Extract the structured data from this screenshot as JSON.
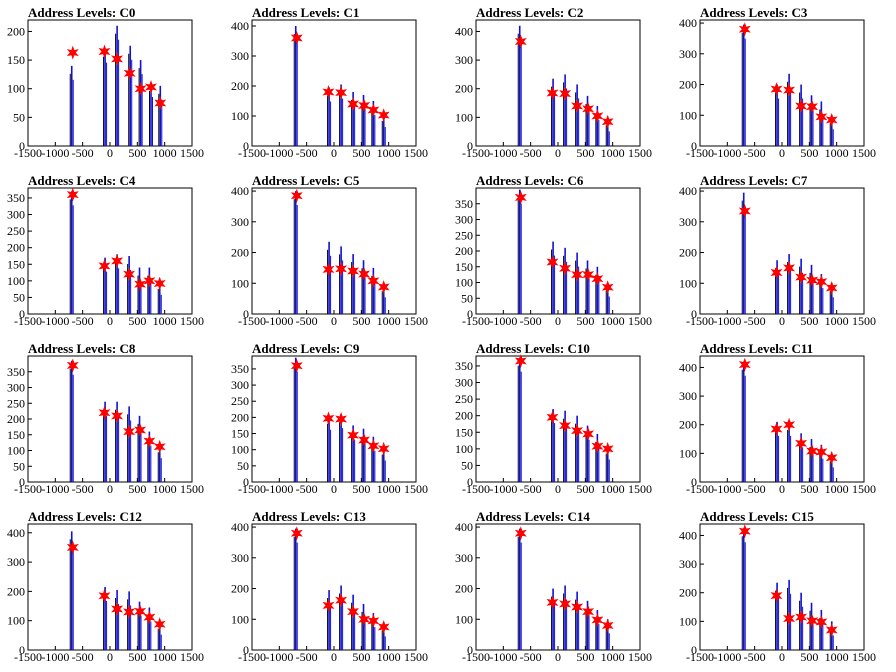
{
  "colors": {
    "peak": "#1010d8",
    "marker": "#ff0000",
    "axis": "#000000",
    "background": "#ffffff"
  },
  "x_ticks": [
    -1500,
    -1000,
    -500,
    0,
    500,
    1000,
    1500
  ],
  "chart_data": [
    {
      "type": "bar",
      "title": "Address Levels: C0",
      "xlim": [
        -1500,
        1500
      ],
      "ylim": [
        0,
        220
      ],
      "yticks": [
        0,
        50,
        100,
        150,
        200
      ],
      "peaks": [
        {
          "x": -680,
          "y": 163
        },
        {
          "x": -100,
          "y": 165
        },
        {
          "x": 130,
          "y": 152
        },
        {
          "x": 360,
          "y": 127
        },
        {
          "x": 560,
          "y": 100
        },
        {
          "x": 750,
          "y": 103
        },
        {
          "x": 920,
          "y": 75
        }
      ],
      "bar_tops": [
        {
          "x": -700,
          "y": 140
        },
        {
          "x": -90,
          "y": 170
        },
        {
          "x": 130,
          "y": 210
        },
        {
          "x": 370,
          "y": 175
        },
        {
          "x": 560,
          "y": 150
        },
        {
          "x": 750,
          "y": 110
        },
        {
          "x": 920,
          "y": 105
        }
      ]
    },
    {
      "type": "bar",
      "title": "Address Levels: C1",
      "xlim": [
        -1500,
        1500
      ],
      "ylim": [
        0,
        420
      ],
      "yticks": [
        0,
        100,
        200,
        300,
        400
      ],
      "peaks": [
        {
          "x": -680,
          "y": 360
        },
        {
          "x": -100,
          "y": 180
        },
        {
          "x": 130,
          "y": 178
        },
        {
          "x": 350,
          "y": 140
        },
        {
          "x": 550,
          "y": 135
        },
        {
          "x": 720,
          "y": 120
        },
        {
          "x": 910,
          "y": 103
        }
      ],
      "bar_tops": [
        {
          "x": -700,
          "y": 400
        },
        {
          "x": -90,
          "y": 195
        },
        {
          "x": 130,
          "y": 205
        },
        {
          "x": 350,
          "y": 180
        },
        {
          "x": 540,
          "y": 170
        },
        {
          "x": 720,
          "y": 150
        },
        {
          "x": 910,
          "y": 110
        }
      ]
    },
    {
      "type": "bar",
      "title": "Address Levels: C2",
      "xlim": [
        -1500,
        1500
      ],
      "ylim": [
        0,
        440
      ],
      "yticks": [
        0,
        100,
        200,
        300,
        400
      ],
      "peaks": [
        {
          "x": -680,
          "y": 365
        },
        {
          "x": -100,
          "y": 185
        },
        {
          "x": 130,
          "y": 183
        },
        {
          "x": 350,
          "y": 140
        },
        {
          "x": 550,
          "y": 130
        },
        {
          "x": 720,
          "y": 105
        },
        {
          "x": 910,
          "y": 85
        }
      ],
      "bar_tops": [
        {
          "x": -700,
          "y": 420
        },
        {
          "x": -90,
          "y": 235
        },
        {
          "x": 130,
          "y": 250
        },
        {
          "x": 350,
          "y": 215
        },
        {
          "x": 540,
          "y": 175
        },
        {
          "x": 720,
          "y": 140
        },
        {
          "x": 910,
          "y": 100
        }
      ]
    },
    {
      "type": "bar",
      "title": "Address Levels: C3",
      "xlim": [
        -1500,
        1500
      ],
      "ylim": [
        0,
        410
      ],
      "yticks": [
        0,
        100,
        200,
        300,
        400
      ],
      "peaks": [
        {
          "x": -680,
          "y": 380
        },
        {
          "x": -100,
          "y": 185
        },
        {
          "x": 130,
          "y": 182
        },
        {
          "x": 350,
          "y": 130
        },
        {
          "x": 550,
          "y": 128
        },
        {
          "x": 720,
          "y": 95
        },
        {
          "x": 910,
          "y": 85
        }
      ],
      "bar_tops": [
        {
          "x": -700,
          "y": 395
        },
        {
          "x": -90,
          "y": 200
        },
        {
          "x": 130,
          "y": 235
        },
        {
          "x": 350,
          "y": 200
        },
        {
          "x": 540,
          "y": 165
        },
        {
          "x": 720,
          "y": 145
        },
        {
          "x": 910,
          "y": 100
        }
      ]
    },
    {
      "type": "bar",
      "title": "Address Levels: C4",
      "xlim": [
        -1500,
        1500
      ],
      "ylim": [
        0,
        380
      ],
      "yticks": [
        0,
        50,
        100,
        150,
        200,
        250,
        300,
        350
      ],
      "peaks": [
        {
          "x": -680,
          "y": 360
        },
        {
          "x": -100,
          "y": 145
        },
        {
          "x": 130,
          "y": 160
        },
        {
          "x": 350,
          "y": 120
        },
        {
          "x": 550,
          "y": 90
        },
        {
          "x": 720,
          "y": 100
        },
        {
          "x": 910,
          "y": 92
        }
      ],
      "bar_tops": [
        {
          "x": -700,
          "y": 370
        },
        {
          "x": -90,
          "y": 170
        },
        {
          "x": 130,
          "y": 180
        },
        {
          "x": 350,
          "y": 175
        },
        {
          "x": 540,
          "y": 140
        },
        {
          "x": 720,
          "y": 140
        },
        {
          "x": 910,
          "y": 100
        }
      ]
    },
    {
      "type": "bar",
      "title": "Address Levels: C5",
      "xlim": [
        -1500,
        1500
      ],
      "ylim": [
        0,
        410
      ],
      "yticks": [
        0,
        100,
        200,
        300,
        400
      ],
      "peaks": [
        {
          "x": -680,
          "y": 385
        },
        {
          "x": -100,
          "y": 145
        },
        {
          "x": 130,
          "y": 147
        },
        {
          "x": 350,
          "y": 140
        },
        {
          "x": 550,
          "y": 130
        },
        {
          "x": 720,
          "y": 108
        },
        {
          "x": 910,
          "y": 88
        }
      ],
      "bar_tops": [
        {
          "x": -700,
          "y": 400
        },
        {
          "x": -90,
          "y": 235
        },
        {
          "x": 130,
          "y": 220
        },
        {
          "x": 350,
          "y": 195
        },
        {
          "x": 540,
          "y": 175
        },
        {
          "x": 720,
          "y": 150
        },
        {
          "x": 910,
          "y": 100
        }
      ]
    },
    {
      "type": "bar",
      "title": "Address Levels: C6",
      "xlim": [
        -1500,
        1500
      ],
      "ylim": [
        0,
        400
      ],
      "yticks": [
        0,
        50,
        100,
        150,
        200,
        250,
        300,
        350
      ],
      "peaks": [
        {
          "x": -680,
          "y": 370
        },
        {
          "x": -100,
          "y": 165
        },
        {
          "x": 130,
          "y": 145
        },
        {
          "x": 350,
          "y": 125
        },
        {
          "x": 550,
          "y": 125
        },
        {
          "x": 720,
          "y": 112
        },
        {
          "x": 910,
          "y": 85
        }
      ],
      "bar_tops": [
        {
          "x": -700,
          "y": 395
        },
        {
          "x": -90,
          "y": 230
        },
        {
          "x": 130,
          "y": 210
        },
        {
          "x": 350,
          "y": 195
        },
        {
          "x": 540,
          "y": 170
        },
        {
          "x": 720,
          "y": 150
        },
        {
          "x": 910,
          "y": 100
        }
      ]
    },
    {
      "type": "bar",
      "title": "Address Levels: C7",
      "xlim": [
        -1500,
        1500
      ],
      "ylim": [
        0,
        410
      ],
      "yticks": [
        0,
        100,
        200,
        300,
        400
      ],
      "peaks": [
        {
          "x": -680,
          "y": 335
        },
        {
          "x": -100,
          "y": 135
        },
        {
          "x": 130,
          "y": 150
        },
        {
          "x": 350,
          "y": 120
        },
        {
          "x": 550,
          "y": 110
        },
        {
          "x": 720,
          "y": 105
        },
        {
          "x": 910,
          "y": 85
        }
      ],
      "bar_tops": [
        {
          "x": -700,
          "y": 395
        },
        {
          "x": -90,
          "y": 175
        },
        {
          "x": 130,
          "y": 195
        },
        {
          "x": 350,
          "y": 180
        },
        {
          "x": 540,
          "y": 160
        },
        {
          "x": 720,
          "y": 130
        },
        {
          "x": 910,
          "y": 100
        }
      ]
    },
    {
      "type": "bar",
      "title": "Address Levels: C8",
      "xlim": [
        -1500,
        1500
      ],
      "ylim": [
        0,
        400
      ],
      "yticks": [
        0,
        50,
        100,
        150,
        200,
        250,
        300,
        350
      ],
      "peaks": [
        {
          "x": -680,
          "y": 370
        },
        {
          "x": -100,
          "y": 220
        },
        {
          "x": 130,
          "y": 210
        },
        {
          "x": 350,
          "y": 160
        },
        {
          "x": 550,
          "y": 165
        },
        {
          "x": 720,
          "y": 130
        },
        {
          "x": 910,
          "y": 112
        }
      ],
      "bar_tops": [
        {
          "x": -700,
          "y": 385
        },
        {
          "x": -90,
          "y": 255
        },
        {
          "x": 130,
          "y": 255
        },
        {
          "x": 350,
          "y": 240
        },
        {
          "x": 540,
          "y": 210
        },
        {
          "x": 720,
          "y": 160
        },
        {
          "x": 910,
          "y": 120
        }
      ]
    },
    {
      "type": "bar",
      "title": "Address Levels: C9",
      "xlim": [
        -1500,
        1500
      ],
      "ylim": [
        0,
        390
      ],
      "yticks": [
        0,
        50,
        100,
        150,
        200,
        250,
        300,
        350
      ],
      "peaks": [
        {
          "x": -680,
          "y": 360
        },
        {
          "x": -100,
          "y": 197
        },
        {
          "x": 130,
          "y": 195
        },
        {
          "x": 350,
          "y": 145
        },
        {
          "x": 550,
          "y": 130
        },
        {
          "x": 720,
          "y": 112
        },
        {
          "x": 910,
          "y": 103
        }
      ],
      "bar_tops": [
        {
          "x": -700,
          "y": 385
        },
        {
          "x": -90,
          "y": 205
        },
        {
          "x": 130,
          "y": 210
        },
        {
          "x": 350,
          "y": 175
        },
        {
          "x": 540,
          "y": 165
        },
        {
          "x": 720,
          "y": 140
        },
        {
          "x": 910,
          "y": 110
        }
      ]
    },
    {
      "type": "bar",
      "title": "Address Levels: C10",
      "xlim": [
        -1500,
        1500
      ],
      "ylim": [
        0,
        380
      ],
      "yticks": [
        0,
        50,
        100,
        150,
        200,
        250,
        300,
        350
      ],
      "peaks": [
        {
          "x": -680,
          "y": 365
        },
        {
          "x": -100,
          "y": 195
        },
        {
          "x": 130,
          "y": 170
        },
        {
          "x": 350,
          "y": 155
        },
        {
          "x": 550,
          "y": 145
        },
        {
          "x": 720,
          "y": 108
        },
        {
          "x": 910,
          "y": 100
        }
      ],
      "bar_tops": [
        {
          "x": -700,
          "y": 375
        },
        {
          "x": -90,
          "y": 220
        },
        {
          "x": 130,
          "y": 215
        },
        {
          "x": 350,
          "y": 200
        },
        {
          "x": 540,
          "y": 170
        },
        {
          "x": 720,
          "y": 145
        },
        {
          "x": 910,
          "y": 110
        }
      ]
    },
    {
      "type": "bar",
      "title": "Address Levels: C11",
      "xlim": [
        -1500,
        1500
      ],
      "ylim": [
        0,
        440
      ],
      "yticks": [
        0,
        100,
        200,
        300,
        400
      ],
      "peaks": [
        {
          "x": -680,
          "y": 410
        },
        {
          "x": -100,
          "y": 185
        },
        {
          "x": 130,
          "y": 200
        },
        {
          "x": 350,
          "y": 135
        },
        {
          "x": 550,
          "y": 108
        },
        {
          "x": 720,
          "y": 105
        },
        {
          "x": 910,
          "y": 85
        }
      ],
      "bar_tops": [
        {
          "x": -700,
          "y": 420
        },
        {
          "x": -90,
          "y": 210
        },
        {
          "x": 130,
          "y": 210
        },
        {
          "x": 350,
          "y": 170
        },
        {
          "x": 540,
          "y": 150
        },
        {
          "x": 720,
          "y": 130
        },
        {
          "x": 910,
          "y": 100
        }
      ]
    },
    {
      "type": "bar",
      "title": "Address Levels: C12",
      "xlim": [
        -1500,
        1500
      ],
      "ylim": [
        0,
        430
      ],
      "yticks": [
        0,
        100,
        200,
        300,
        400
      ],
      "peaks": [
        {
          "x": -680,
          "y": 350
        },
        {
          "x": -100,
          "y": 185
        },
        {
          "x": 130,
          "y": 140
        },
        {
          "x": 350,
          "y": 130
        },
        {
          "x": 550,
          "y": 132
        },
        {
          "x": 720,
          "y": 112
        },
        {
          "x": 910,
          "y": 88
        }
      ],
      "bar_tops": [
        {
          "x": -700,
          "y": 405
        },
        {
          "x": -90,
          "y": 215
        },
        {
          "x": 130,
          "y": 205
        },
        {
          "x": 350,
          "y": 200
        },
        {
          "x": 540,
          "y": 165
        },
        {
          "x": 720,
          "y": 145
        },
        {
          "x": 910,
          "y": 100
        }
      ]
    },
    {
      "type": "bar",
      "title": "Address Levels: C13",
      "xlim": [
        -1500,
        1500
      ],
      "ylim": [
        0,
        410
      ],
      "yticks": [
        0,
        100,
        200,
        300,
        400
      ],
      "peaks": [
        {
          "x": -680,
          "y": 380
        },
        {
          "x": -100,
          "y": 145
        },
        {
          "x": 130,
          "y": 162
        },
        {
          "x": 350,
          "y": 125
        },
        {
          "x": 550,
          "y": 100
        },
        {
          "x": 720,
          "y": 95
        },
        {
          "x": 910,
          "y": 75
        }
      ],
      "bar_tops": [
        {
          "x": -700,
          "y": 395
        },
        {
          "x": -90,
          "y": 195
        },
        {
          "x": 130,
          "y": 210
        },
        {
          "x": 350,
          "y": 180
        },
        {
          "x": 540,
          "y": 150
        },
        {
          "x": 720,
          "y": 120
        },
        {
          "x": 910,
          "y": 90
        }
      ]
    },
    {
      "type": "bar",
      "title": "Address Levels: C14",
      "xlim": [
        -1500,
        1500
      ],
      "ylim": [
        0,
        410
      ],
      "yticks": [
        0,
        100,
        200,
        300,
        400
      ],
      "peaks": [
        {
          "x": -680,
          "y": 380
        },
        {
          "x": -100,
          "y": 155
        },
        {
          "x": 130,
          "y": 150
        },
        {
          "x": 350,
          "y": 140
        },
        {
          "x": 550,
          "y": 125
        },
        {
          "x": 720,
          "y": 98
        },
        {
          "x": 910,
          "y": 80
        }
      ],
      "bar_tops": [
        {
          "x": -700,
          "y": 395
        },
        {
          "x": -90,
          "y": 200
        },
        {
          "x": 130,
          "y": 210
        },
        {
          "x": 350,
          "y": 190
        },
        {
          "x": 540,
          "y": 160
        },
        {
          "x": 720,
          "y": 130
        },
        {
          "x": 910,
          "y": 100
        }
      ]
    },
    {
      "type": "bar",
      "title": "Address Levels: C15",
      "xlim": [
        -1500,
        1500
      ],
      "ylim": [
        0,
        440
      ],
      "yticks": [
        0,
        100,
        200,
        300,
        400
      ],
      "peaks": [
        {
          "x": -680,
          "y": 415
        },
        {
          "x": -100,
          "y": 190
        },
        {
          "x": 130,
          "y": 110
        },
        {
          "x": 350,
          "y": 115
        },
        {
          "x": 550,
          "y": 102
        },
        {
          "x": 720,
          "y": 98
        },
        {
          "x": 910,
          "y": 70
        }
      ],
      "bar_tops": [
        {
          "x": -700,
          "y": 425
        },
        {
          "x": -90,
          "y": 235
        },
        {
          "x": 130,
          "y": 245
        },
        {
          "x": 350,
          "y": 200
        },
        {
          "x": 540,
          "y": 165
        },
        {
          "x": 720,
          "y": 140
        },
        {
          "x": 910,
          "y": 100
        }
      ]
    }
  ]
}
